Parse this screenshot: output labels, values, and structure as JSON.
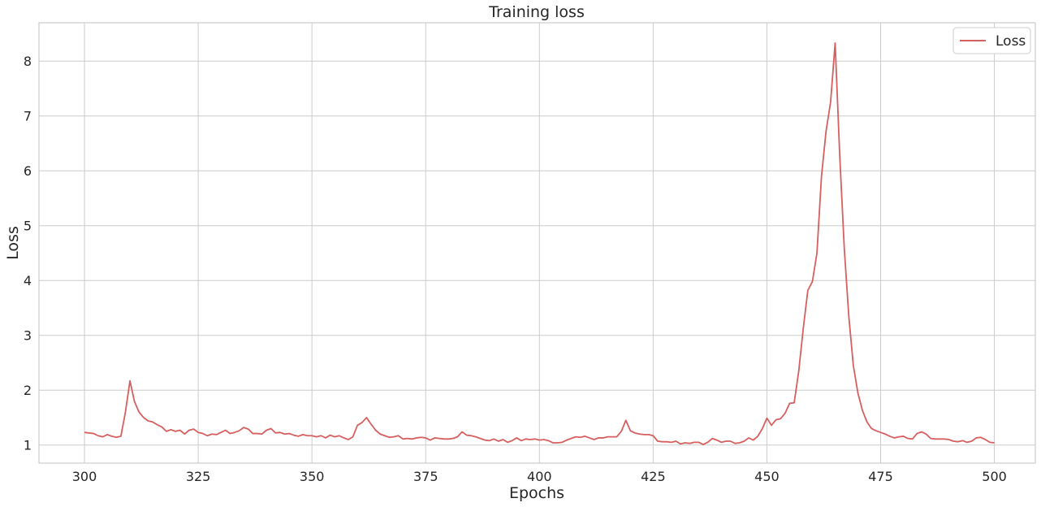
{
  "chart_data": {
    "type": "line",
    "title": "Training loss",
    "xlabel": "Epochs",
    "ylabel": "Loss",
    "xlim": [
      290,
      509
    ],
    "ylim": [
      0.67,
      8.7
    ],
    "xticks": [
      300,
      325,
      350,
      375,
      400,
      425,
      450,
      475,
      500
    ],
    "yticks": [
      1,
      2,
      3,
      4,
      5,
      6,
      7,
      8
    ],
    "grid": true,
    "legend_position": "top-right",
    "colors": {
      "line": "#d65f5f",
      "grid": "#cccccc",
      "frame": "#cccccc",
      "text": "#262626"
    },
    "series": [
      {
        "name": "Loss",
        "x_start": 300,
        "x_step": 1,
        "values": [
          1.23,
          1.22,
          1.21,
          1.17,
          1.15,
          1.19,
          1.16,
          1.14,
          1.16,
          1.6,
          2.17,
          1.79,
          1.6,
          1.5,
          1.44,
          1.42,
          1.37,
          1.33,
          1.25,
          1.28,
          1.25,
          1.27,
          1.2,
          1.27,
          1.29,
          1.23,
          1.21,
          1.17,
          1.2,
          1.19,
          1.23,
          1.27,
          1.21,
          1.23,
          1.26,
          1.32,
          1.29,
          1.21,
          1.21,
          1.2,
          1.27,
          1.3,
          1.22,
          1.23,
          1.2,
          1.21,
          1.18,
          1.16,
          1.19,
          1.17,
          1.17,
          1.15,
          1.17,
          1.13,
          1.18,
          1.15,
          1.17,
          1.13,
          1.1,
          1.15,
          1.36,
          1.41,
          1.5,
          1.38,
          1.27,
          1.2,
          1.17,
          1.14,
          1.15,
          1.17,
          1.11,
          1.12,
          1.11,
          1.13,
          1.14,
          1.13,
          1.09,
          1.13,
          1.12,
          1.11,
          1.11,
          1.12,
          1.15,
          1.24,
          1.18,
          1.17,
          1.15,
          1.12,
          1.09,
          1.08,
          1.11,
          1.07,
          1.1,
          1.05,
          1.08,
          1.13,
          1.08,
          1.11,
          1.1,
          1.11,
          1.09,
          1.1,
          1.08,
          1.04,
          1.04,
          1.05,
          1.09,
          1.12,
          1.15,
          1.14,
          1.16,
          1.13,
          1.1,
          1.13,
          1.13,
          1.15,
          1.15,
          1.15,
          1.25,
          1.45,
          1.26,
          1.22,
          1.2,
          1.19,
          1.19,
          1.17,
          1.07,
          1.06,
          1.06,
          1.05,
          1.07,
          1.02,
          1.04,
          1.03,
          1.05,
          1.05,
          1.01,
          1.05,
          1.12,
          1.09,
          1.05,
          1.07,
          1.07,
          1.03,
          1.04,
          1.07,
          1.13,
          1.09,
          1.16,
          1.3,
          1.49,
          1.36,
          1.46,
          1.48,
          1.58,
          1.76,
          1.77,
          2.35,
          3.13,
          3.82,
          3.98,
          4.5,
          5.9,
          6.72,
          7.25,
          8.33,
          6.3,
          4.6,
          3.35,
          2.45,
          1.95,
          1.63,
          1.42,
          1.3,
          1.26,
          1.23,
          1.2,
          1.16,
          1.13,
          1.15,
          1.16,
          1.12,
          1.11,
          1.21,
          1.24,
          1.2,
          1.12,
          1.11,
          1.11,
          1.11,
          1.1,
          1.07,
          1.06,
          1.08,
          1.05,
          1.07,
          1.13,
          1.14,
          1.1,
          1.05,
          1.04
        ]
      }
    ]
  }
}
